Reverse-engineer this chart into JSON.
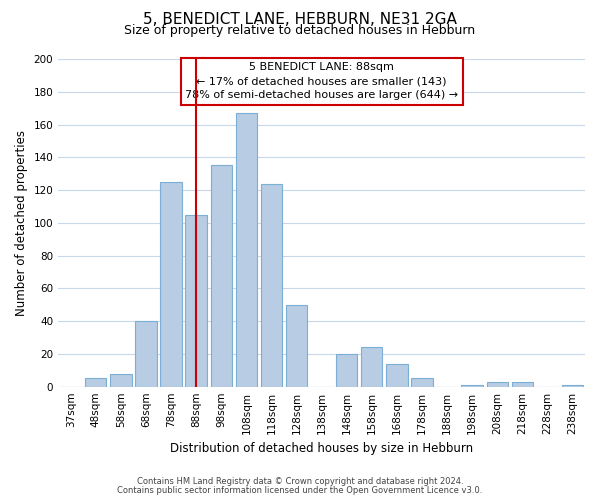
{
  "title": "5, BENEDICT LANE, HEBBURN, NE31 2GA",
  "subtitle": "Size of property relative to detached houses in Hebburn",
  "xlabel": "Distribution of detached houses by size in Hebburn",
  "ylabel": "Number of detached properties",
  "bins": [
    "37sqm",
    "48sqm",
    "58sqm",
    "68sqm",
    "78sqm",
    "88sqm",
    "98sqm",
    "108sqm",
    "118sqm",
    "128sqm",
    "138sqm",
    "148sqm",
    "158sqm",
    "168sqm",
    "178sqm",
    "188sqm",
    "198sqm",
    "208sqm",
    "218sqm",
    "228sqm",
    "238sqm"
  ],
  "counts": [
    0,
    5,
    8,
    40,
    125,
    105,
    135,
    167,
    124,
    50,
    0,
    20,
    24,
    14,
    5,
    0,
    1,
    3,
    3,
    0,
    1
  ],
  "bar_color": "#b8cce4",
  "bar_edge_color": "#7bafd4",
  "property_label": "5 BENEDICT LANE: 88sqm",
  "annotation_line1": "← 17% of detached houses are smaller (143)",
  "annotation_line2": "78% of semi-detached houses are larger (644) →",
  "vline_color": "#cc0000",
  "vline_x_index": 5,
  "annotation_box_color": "#cc0000",
  "ylim": [
    0,
    200
  ],
  "yticks": [
    0,
    20,
    40,
    60,
    80,
    100,
    120,
    140,
    160,
    180,
    200
  ],
  "footnote1": "Contains HM Land Registry data © Crown copyright and database right 2024.",
  "footnote2": "Contains public sector information licensed under the Open Government Licence v3.0.",
  "background_color": "#ffffff",
  "grid_color": "#c8d8e8",
  "title_fontsize": 11,
  "subtitle_fontsize": 9,
  "axis_label_fontsize": 8.5,
  "tick_fontsize": 7.5
}
